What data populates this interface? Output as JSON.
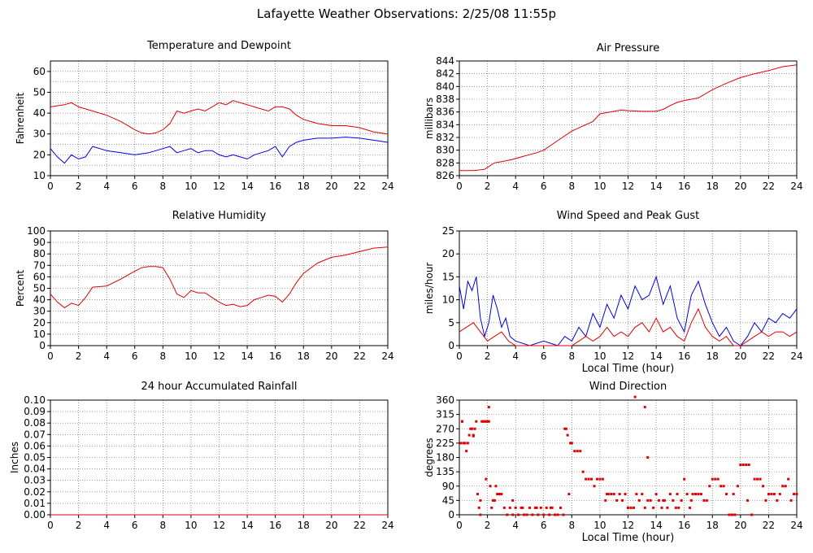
{
  "page": {
    "title": "Lafayette Weather Observations: 2/25/08 11:55p"
  },
  "colors": {
    "red": "#e00000",
    "blue": "#0000e6",
    "grid": "#555555"
  },
  "chart_data": [
    {
      "id": "temperature",
      "type": "line",
      "title": "Temperature and Dewpoint",
      "xlabel": "",
      "ylabel": "Fahrenheit",
      "xlim": [
        0,
        24
      ],
      "ylim": [
        10,
        65
      ],
      "yticks": [
        10,
        20,
        30,
        40,
        50,
        60
      ],
      "ygrid": [
        10,
        15,
        20,
        25,
        30,
        35,
        40,
        45,
        50,
        55,
        60,
        65
      ],
      "xticks": [
        0,
        2,
        4,
        6,
        8,
        10,
        12,
        14,
        16,
        18,
        20,
        22,
        24
      ],
      "grid": true,
      "series": [
        {
          "color": "red",
          "x": [
            0,
            1,
            1.5,
            2,
            3,
            4,
            5,
            6,
            6.5,
            7,
            7.5,
            8,
            8.5,
            9,
            9.5,
            10,
            10.5,
            11,
            11.5,
            12,
            12.5,
            13,
            13.5,
            14,
            14.5,
            15,
            15.5,
            16,
            16.5,
            17,
            17.5,
            18,
            19,
            20,
            21,
            22,
            23,
            24
          ],
          "y": [
            43,
            44,
            45,
            43,
            41,
            39,
            36,
            32,
            30.5,
            30,
            30.5,
            32,
            35,
            41,
            40,
            41,
            42,
            41,
            43,
            45,
            44,
            46,
            45,
            44,
            43,
            42,
            41,
            43,
            43,
            42,
            39,
            37,
            35,
            34,
            34,
            33,
            31,
            30
          ]
        },
        {
          "color": "blue",
          "x": [
            0,
            0.5,
            1,
            1.5,
            2,
            2.5,
            3,
            4,
            5,
            6,
            7,
            8,
            8.5,
            9,
            9.5,
            10,
            10.5,
            11,
            11.5,
            12,
            12.5,
            13,
            13.5,
            14,
            14.5,
            15,
            15.5,
            16,
            16.5,
            17,
            17.5,
            18,
            19,
            20,
            21,
            22,
            23,
            24
          ],
          "y": [
            23,
            19,
            16,
            20,
            18,
            19,
            24,
            22,
            21,
            20,
            21,
            23,
            24,
            21,
            22,
            23,
            21,
            22,
            22,
            20,
            19,
            20,
            19,
            18,
            20,
            21,
            22,
            24,
            19,
            24,
            26,
            27,
            28,
            28,
            28.5,
            28,
            27,
            26
          ]
        }
      ]
    },
    {
      "id": "pressure",
      "type": "line",
      "title": "Air Pressure",
      "xlabel": "",
      "ylabel": "millibars",
      "xlim": [
        0,
        24
      ],
      "ylim": [
        826,
        844
      ],
      "yticks": [
        826,
        828,
        830,
        832,
        834,
        836,
        838,
        840,
        842,
        844
      ],
      "ygrid": [
        826,
        828,
        830,
        832,
        834,
        836,
        838,
        840,
        842,
        844
      ],
      "xticks": [
        0,
        2,
        4,
        6,
        8,
        10,
        12,
        14,
        16,
        18,
        20,
        22,
        24
      ],
      "grid": true,
      "series": [
        {
          "color": "red",
          "x": [
            0,
            1,
            1.8,
            2.5,
            3,
            3.7,
            4.5,
            5.5,
            6,
            7,
            8,
            9,
            9.5,
            10,
            11,
            11.5,
            12,
            13,
            14,
            14.5,
            15,
            15.5,
            16,
            17,
            18,
            19,
            20,
            21,
            22,
            23,
            24
          ],
          "y": [
            826.8,
            826.8,
            827,
            828,
            828.2,
            828.5,
            829,
            829.6,
            830,
            831.5,
            833,
            834,
            834.5,
            835.7,
            836.1,
            836.3,
            836.2,
            836.1,
            836.1,
            836.4,
            837,
            837.5,
            837.8,
            838.2,
            839.5,
            840.5,
            841.4,
            842,
            842.5,
            843.1,
            843.4
          ]
        }
      ]
    },
    {
      "id": "humidity",
      "type": "line",
      "title": "Relative Humidity",
      "xlabel": "",
      "ylabel": "Percent",
      "xlim": [
        0,
        24
      ],
      "ylim": [
        0,
        100
      ],
      "yticks": [
        0,
        10,
        20,
        30,
        40,
        50,
        60,
        70,
        80,
        90,
        100
      ],
      "ygrid": [
        0,
        10,
        20,
        30,
        40,
        50,
        60,
        70,
        80,
        90,
        100
      ],
      "xticks": [
        0,
        2,
        4,
        6,
        8,
        10,
        12,
        14,
        16,
        18,
        20,
        22,
        24
      ],
      "grid": true,
      "series": [
        {
          "color": "red",
          "x": [
            0,
            0.5,
            1,
            1.5,
            2,
            2.5,
            3,
            4,
            5,
            6,
            6.5,
            7,
            7.5,
            8,
            8.5,
            9,
            9.5,
            10,
            10.5,
            11,
            11.5,
            12,
            12.5,
            13,
            13.5,
            14,
            14.5,
            15,
            15.5,
            16,
            16.5,
            17,
            17.5,
            18,
            19,
            20,
            21,
            22,
            23,
            24
          ],
          "y": [
            45,
            38,
            33,
            37,
            35,
            42,
            51,
            52,
            58,
            65,
            68,
            69,
            69,
            68,
            58,
            45,
            42,
            48,
            46,
            46,
            42,
            38,
            35,
            36,
            34,
            35,
            40,
            42,
            44,
            43,
            38,
            45,
            55,
            63,
            72,
            77,
            79,
            82,
            85,
            86
          ]
        }
      ]
    },
    {
      "id": "wind-speed",
      "type": "line",
      "title": "Wind Speed and Peak Gust",
      "xlabel": "Local Time (hour)",
      "ylabel": "miles/hour",
      "xlim": [
        0,
        24
      ],
      "ylim": [
        0,
        25
      ],
      "yticks": [
        0,
        5,
        10,
        15,
        20,
        25
      ],
      "ygrid": [
        0,
        5,
        10,
        15,
        20,
        25
      ],
      "xticks": [
        0,
        2,
        4,
        6,
        8,
        10,
        12,
        14,
        16,
        18,
        20,
        22,
        24
      ],
      "grid": true,
      "series": [
        {
          "color": "blue",
          "x": [
            0,
            0.3,
            0.6,
            0.9,
            1.2,
            1.5,
            1.8,
            2.1,
            2.4,
            2.7,
            3.0,
            3.3,
            3.6,
            4,
            5,
            6,
            7,
            7.5,
            8,
            8.5,
            9,
            9.5,
            10,
            10.5,
            11,
            11.5,
            12,
            12.5,
            13,
            13.5,
            14,
            14.5,
            15,
            15.5,
            16,
            16.5,
            17,
            17.5,
            18,
            18.5,
            19,
            19.5,
            20,
            20.5,
            21,
            21.5,
            22,
            22.5,
            23,
            23.5,
            24
          ],
          "y": [
            13,
            8,
            14,
            12,
            15,
            6,
            2,
            5,
            11,
            8,
            4,
            6,
            2,
            1,
            0,
            1,
            0,
            2,
            1,
            4,
            2,
            7,
            4,
            9,
            6,
            11,
            8,
            13,
            10,
            11,
            15,
            9,
            13,
            6,
            3,
            11,
            14,
            9,
            5,
            2,
            4,
            1,
            0,
            2,
            5,
            3,
            6,
            5,
            7,
            6,
            8
          ]
        },
        {
          "color": "red",
          "x": [
            0,
            0.5,
            1,
            1.5,
            2,
            2.5,
            3,
            3.5,
            4,
            5,
            6,
            7,
            8,
            8.5,
            9,
            9.5,
            10,
            10.5,
            11,
            11.5,
            12,
            12.5,
            13,
            13.5,
            14,
            14.5,
            15,
            15.5,
            16,
            16.5,
            17,
            17.5,
            18,
            18.5,
            19,
            19.5,
            20,
            20.5,
            21,
            21.5,
            22,
            22.5,
            23,
            23.5,
            24
          ],
          "y": [
            3,
            4,
            5,
            3,
            1,
            2,
            3,
            1,
            0,
            0,
            0,
            0,
            0,
            1,
            2,
            1,
            2,
            4,
            2,
            3,
            2,
            4,
            5,
            3,
            6,
            3,
            4,
            2,
            1,
            5,
            8,
            4,
            2,
            1,
            2,
            0,
            0,
            1,
            2,
            3,
            2,
            3,
            3,
            2,
            3
          ]
        }
      ]
    },
    {
      "id": "rainfall",
      "type": "line",
      "title": "24 hour Accumulated Rainfall",
      "xlabel": "",
      "ylabel": "Inches",
      "xlim": [
        0,
        24
      ],
      "ylim": [
        0,
        0.1
      ],
      "yticks": [
        0.0,
        0.01,
        0.02,
        0.03,
        0.04,
        0.05,
        0.06,
        0.07,
        0.08,
        0.09,
        0.1
      ],
      "ytick_labels": [
        "0.00",
        "0.01",
        "0.02",
        "0.03",
        "0.04",
        "0.05",
        "0.06",
        "0.07",
        "0.08",
        "0.09",
        "0.10"
      ],
      "ygrid": [
        0.0,
        0.01,
        0.02,
        0.03,
        0.04,
        0.05,
        0.06,
        0.07,
        0.08,
        0.09,
        0.1
      ],
      "xticks": [
        0,
        2,
        4,
        6,
        8,
        10,
        12,
        14,
        16,
        18,
        20,
        22,
        24
      ],
      "grid": true,
      "series": [
        {
          "color": "red",
          "x": [
            0,
            24
          ],
          "y": [
            0,
            0
          ]
        }
      ]
    },
    {
      "id": "wind-direction",
      "type": "scatter",
      "title": "Wind Direction",
      "xlabel": "Local Time (hour)",
      "ylabel": "degrees",
      "xlim": [
        0,
        24
      ],
      "ylim": [
        0,
        360
      ],
      "yticks": [
        0,
        45,
        90,
        135,
        180,
        225,
        270,
        315,
        360
      ],
      "ygrid": [
        0,
        45,
        90,
        135,
        180,
        225,
        270,
        315,
        360
      ],
      "xticks": [
        0,
        2,
        4,
        6,
        8,
        10,
        12,
        14,
        16,
        18,
        20,
        22,
        24
      ],
      "grid": true,
      "series": [
        {
          "color": "red",
          "x": [
            0.1,
            0.2,
            0.3,
            0.4,
            0.5,
            0.6,
            0.7,
            0.8,
            0.9,
            1.0,
            1.1,
            1.2,
            1.3,
            1.4,
            1.5,
            1.6,
            1.7,
            1.8,
            1.9,
            2.0,
            2.1,
            2.2,
            2.3,
            2.4,
            2.5,
            2.6,
            2.7,
            2.8,
            2.9,
            3.0,
            3.2,
            3.4,
            3.6,
            3.8,
            4.0,
            4.2,
            4.4,
            4.6,
            4.8,
            5.0,
            5.2,
            5.4,
            5.6,
            5.8,
            6.0,
            6.2,
            6.4,
            6.6,
            6.8,
            7.0,
            7.2,
            7.4,
            7.6,
            7.7,
            7.8,
            7.9,
            8.0,
            8.2,
            8.4,
            8.6,
            8.8,
            9.0,
            9.2,
            9.4,
            9.6,
            9.8,
            10.0,
            10.2,
            10.4,
            10.6,
            10.8,
            11.0,
            11.2,
            11.4,
            11.6,
            11.8,
            12.0,
            12.2,
            12.4,
            12.6,
            12.8,
            13.0,
            13.2,
            13.4,
            13.6,
            13.8,
            14.0,
            14.2,
            14.4,
            14.6,
            14.8,
            15.0,
            15.2,
            15.4,
            15.6,
            15.8,
            16.0,
            16.2,
            16.4,
            16.6,
            16.8,
            17.0,
            17.2,
            17.4,
            17.6,
            17.8,
            18.0,
            18.2,
            18.4,
            18.6,
            18.8,
            19.0,
            19.2,
            19.4,
            19.6,
            19.8,
            20.0,
            20.2,
            20.4,
            20.6,
            20.8,
            21.0,
            21.2,
            21.4,
            21.6,
            21.8,
            22.0,
            22.2,
            22.4,
            22.6,
            22.8,
            23.0,
            23.2,
            23.4,
            23.6,
            23.8,
            24.0,
            0.2,
            1.0,
            2.1,
            12.5,
            13.2,
            13.4,
            7.5,
            1.5,
            1.9,
            2.5,
            3.8,
            4.5,
            5.5,
            6.5,
            10.5,
            12.0,
            14.5,
            15.5,
            16.5,
            19.5,
            20.5
          ],
          "y": [
            225,
            293,
            225,
            225,
            200,
            225,
            250,
            270,
            270,
            250,
            270,
            293,
            65,
            22,
            0,
            293,
            293,
            293,
            293,
            293,
            293,
            90,
            22,
            45,
            45,
            90,
            65,
            65,
            65,
            65,
            22,
            0,
            22,
            0,
            22,
            0,
            22,
            0,
            0,
            22,
            0,
            22,
            0,
            22,
            0,
            22,
            0,
            22,
            0,
            0,
            22,
            0,
            270,
            250,
            65,
            225,
            225,
            200,
            200,
            200,
            135,
            112,
            112,
            112,
            90,
            112,
            112,
            112,
            45,
            65,
            65,
            65,
            45,
            65,
            45,
            65,
            22,
            22,
            22,
            65,
            45,
            65,
            22,
            45,
            45,
            22,
            65,
            45,
            22,
            45,
            22,
            65,
            45,
            22,
            22,
            45,
            112,
            65,
            22,
            65,
            65,
            65,
            65,
            45,
            45,
            90,
            112,
            112,
            112,
            90,
            90,
            65,
            0,
            0,
            0,
            90,
            157,
            157,
            157,
            157,
            0,
            112,
            112,
            112,
            90,
            45,
            65,
            65,
            65,
            45,
            65,
            90,
            90,
            112,
            45,
            65,
            65,
            293,
            247,
            338,
            370,
            338,
            180,
            270,
            45,
            112,
            45,
            45,
            22,
            22,
            22,
            65,
            22,
            45,
            65,
            45,
            65,
            45
          ]
        }
      ]
    }
  ]
}
